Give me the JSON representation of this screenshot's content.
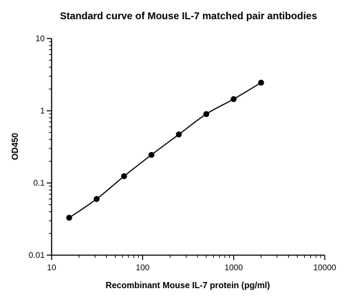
{
  "chart_data": {
    "type": "scatter",
    "title": "Standard curve of Mouse IL-7 matched pair antibodies",
    "xlabel": "Recombinant Mouse IL-7 protein (pg/ml)",
    "ylabel": "OD450",
    "x_scale": "log",
    "y_scale": "log",
    "xlim": [
      10,
      10000
    ],
    "ylim": [
      0.01,
      10
    ],
    "x_ticks": [
      {
        "value": 10,
        "label": "10"
      },
      {
        "value": 100,
        "label": "100"
      },
      {
        "value": 1000,
        "label": "1000"
      },
      {
        "value": 10000,
        "label": "10000"
      }
    ],
    "y_ticks": [
      {
        "value": 0.01,
        "label": "0.01"
      },
      {
        "value": 0.1,
        "label": "0.1"
      },
      {
        "value": 1,
        "label": "1"
      },
      {
        "value": 10,
        "label": "10"
      }
    ],
    "grid": false,
    "fitted_curve": true,
    "colors": {
      "points": "#000000",
      "curve": "#000000",
      "axes": "#000000"
    },
    "series": [
      {
        "x": [
          15.6,
          31.25,
          62.5,
          125,
          250,
          500,
          1000,
          2000
        ],
        "y": [
          0.033,
          0.06,
          0.124,
          0.245,
          0.47,
          0.9,
          1.45,
          2.45
        ]
      }
    ]
  }
}
